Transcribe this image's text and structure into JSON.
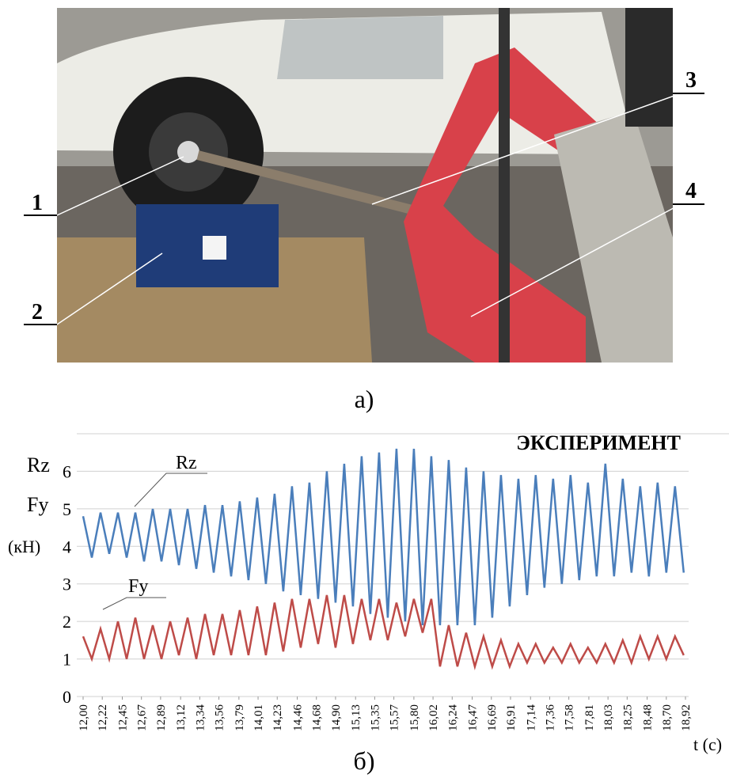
{
  "photo": {
    "labels": [
      "1",
      "2",
      "3",
      "4"
    ],
    "caption": "а)"
  },
  "chart_data": {
    "type": "line",
    "title": "ЭКСПЕРИМЕНТ",
    "caption": "б)",
    "y_label": [
      "(кН)"
    ],
    "x_label": "t (с)",
    "xlim": [
      12.0,
      18.92
    ],
    "ylim": [
      0,
      7
    ],
    "yticks": [
      0,
      1,
      2,
      3,
      4,
      5,
      6
    ],
    "grid": true,
    "xticks": [
      {
        "value": 12.0,
        "label": "12,00"
      },
      {
        "value": 12.22,
        "label": "12,22"
      },
      {
        "value": 12.45,
        "label": "12,45"
      },
      {
        "value": 12.67,
        "label": "12,67"
      },
      {
        "value": 12.89,
        "label": "12,89"
      },
      {
        "value": 13.12,
        "label": "13,12"
      },
      {
        "value": 13.34,
        "label": "13,34"
      },
      {
        "value": 13.56,
        "label": "13,56"
      },
      {
        "value": 13.79,
        "label": "13,79"
      },
      {
        "value": 14.01,
        "label": "14,01"
      },
      {
        "value": 14.23,
        "label": "14,23"
      },
      {
        "value": 14.46,
        "label": "14,46"
      },
      {
        "value": 14.68,
        "label": "14,68"
      },
      {
        "value": 14.9,
        "label": "14,90"
      },
      {
        "value": 15.13,
        "label": "15,13"
      },
      {
        "value": 15.35,
        "label": "15,35"
      },
      {
        "value": 15.57,
        "label": "15,57"
      },
      {
        "value": 15.8,
        "label": "15,80"
      },
      {
        "value": 16.02,
        "label": "16,02"
      },
      {
        "value": 16.24,
        "label": "16,24"
      },
      {
        "value": 16.47,
        "label": "16,47"
      },
      {
        "value": 16.69,
        "label": "16,69"
      },
      {
        "value": 16.91,
        "label": "16,91"
      },
      {
        "value": 17.14,
        "label": "17,14"
      },
      {
        "value": 17.36,
        "label": "17,36"
      },
      {
        "value": 17.58,
        "label": "17,58"
      },
      {
        "value": 17.81,
        "label": "17,81"
      },
      {
        "value": 18.03,
        "label": "18,03"
      },
      {
        "value": 18.25,
        "label": "18,25"
      },
      {
        "value": 18.48,
        "label": "18,48"
      },
      {
        "value": 18.7,
        "label": "18,70"
      },
      {
        "value": 18.92,
        "label": "18,92"
      }
    ],
    "x": [
      12.0,
      12.1,
      12.2,
      12.3,
      12.4,
      12.5,
      12.6,
      12.7,
      12.8,
      12.9,
      13.0,
      13.1,
      13.2,
      13.3,
      13.4,
      13.5,
      13.6,
      13.7,
      13.8,
      13.9,
      14.0,
      14.1,
      14.2,
      14.3,
      14.4,
      14.5,
      14.6,
      14.7,
      14.8,
      14.9,
      15.0,
      15.1,
      15.2,
      15.3,
      15.4,
      15.5,
      15.6,
      15.7,
      15.8,
      15.9,
      16.0,
      16.1,
      16.2,
      16.3,
      16.4,
      16.5,
      16.6,
      16.7,
      16.8,
      16.9,
      17.0,
      17.1,
      17.2,
      17.3,
      17.4,
      17.5,
      17.6,
      17.7,
      17.8,
      17.9,
      18.0,
      18.1,
      18.2,
      18.3,
      18.4,
      18.5,
      18.6,
      18.7,
      18.8,
      18.9
    ],
    "series": [
      {
        "name": "Rz",
        "color": "#4a7ebb",
        "values": [
          4.8,
          3.7,
          4.9,
          3.8,
          4.9,
          3.7,
          4.9,
          3.6,
          5.0,
          3.6,
          5.0,
          3.5,
          5.0,
          3.4,
          5.1,
          3.3,
          5.1,
          3.2,
          5.2,
          3.1,
          5.3,
          3.0,
          5.4,
          2.8,
          5.6,
          2.7,
          5.7,
          2.6,
          6.0,
          2.5,
          6.2,
          2.4,
          6.4,
          2.2,
          6.5,
          2.1,
          6.6,
          2.0,
          6.6,
          1.9,
          6.4,
          1.9,
          6.3,
          1.9,
          6.1,
          1.9,
          6.0,
          2.1,
          5.9,
          2.4,
          5.8,
          2.7,
          5.9,
          2.9,
          5.8,
          3.0,
          5.9,
          3.1,
          5.7,
          3.2,
          6.2,
          3.2,
          5.8,
          3.3,
          5.6,
          3.2,
          5.7,
          3.3,
          5.6,
          3.3
        ]
      },
      {
        "name": "Fy",
        "color": "#be4b48",
        "values": [
          1.6,
          1.0,
          1.8,
          1.0,
          2.0,
          1.0,
          2.1,
          1.0,
          1.9,
          1.0,
          2.0,
          1.1,
          2.1,
          1.0,
          2.2,
          1.1,
          2.2,
          1.1,
          2.3,
          1.1,
          2.4,
          1.1,
          2.5,
          1.2,
          2.6,
          1.3,
          2.6,
          1.4,
          2.7,
          1.3,
          2.7,
          1.4,
          2.6,
          1.5,
          2.6,
          1.5,
          2.5,
          1.6,
          2.6,
          1.7,
          2.6,
          0.8,
          1.9,
          0.8,
          1.7,
          0.8,
          1.6,
          0.8,
          1.5,
          0.8,
          1.4,
          0.9,
          1.4,
          0.9,
          1.3,
          0.9,
          1.4,
          0.9,
          1.3,
          0.9,
          1.4,
          0.9,
          1.5,
          0.9,
          1.6,
          1.0,
          1.6,
          1.0,
          1.6,
          1.1
        ]
      }
    ]
  }
}
